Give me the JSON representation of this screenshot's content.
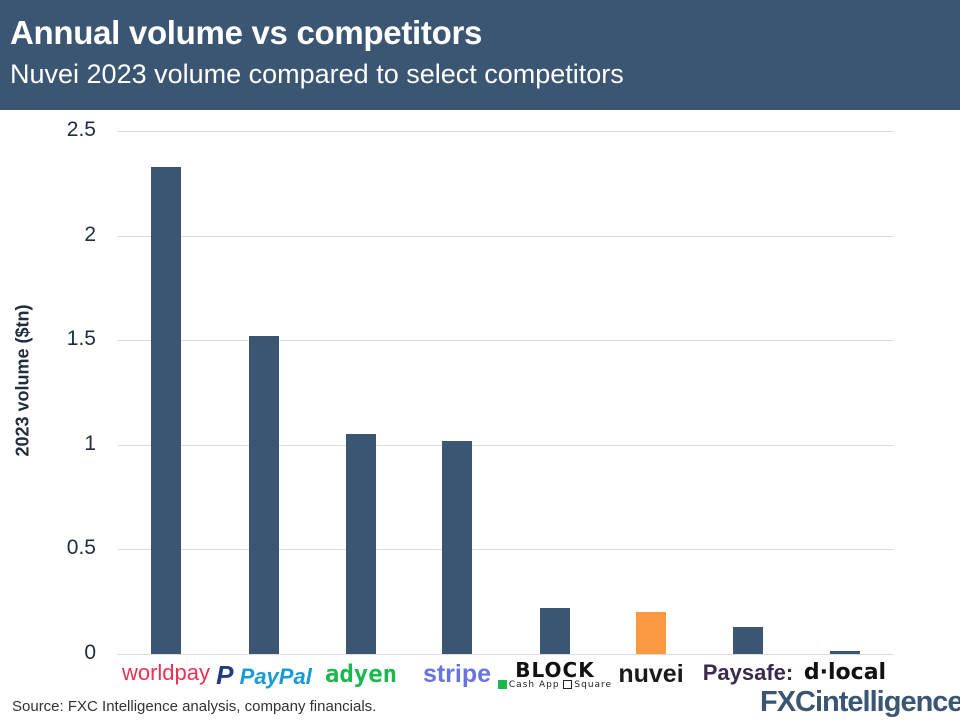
{
  "header": {
    "title": "Annual volume vs competitors",
    "subtitle": "Nuvei 2023 volume compared to select competitors"
  },
  "footer": {
    "source": "Source: FXC Intelligence analysis, company financials.",
    "brand": "FXCintelligence",
    "brand_tm": "™"
  },
  "colors": {
    "header_bg": "#3a5673",
    "bar_default": "#3a5673",
    "bar_highlight": "#fb9a40"
  },
  "chart_data": {
    "type": "bar",
    "title": "Annual volume vs competitors",
    "subtitle": "Nuvei 2023 volume compared to select competitors",
    "xlabel": "",
    "ylabel": "2023 volume ($tn)",
    "ylim": [
      0,
      2.5
    ],
    "yticks": [
      "0",
      "0.5",
      "1",
      "1.5",
      "2",
      "2.5"
    ],
    "grid": true,
    "legend": null,
    "categories": [
      "worldpay",
      "PayPal",
      "adyen",
      "stripe",
      "BLOCK",
      "nuvei",
      "Paysafe:",
      "d·local"
    ],
    "values": [
      2.33,
      1.52,
      1.05,
      1.02,
      0.22,
      0.2,
      0.13,
      0.015
    ],
    "highlight": "nuvei",
    "block_sublabel": [
      "Cash App",
      "Square"
    ]
  }
}
